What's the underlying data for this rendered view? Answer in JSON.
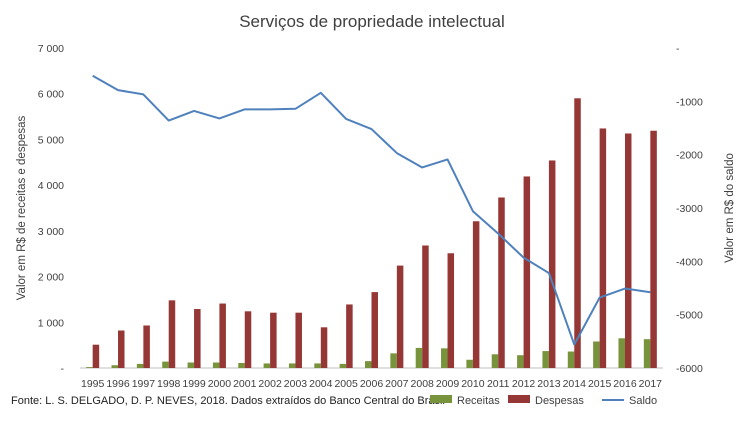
{
  "chart_data": {
    "type": "bar",
    "title": "Serviços de propriedade intelectual",
    "source": "Fonte: L. S. DELGADO, D. P. NEVES, 2018. Dados extraídos do Banco Central do Brasil",
    "ylabel": "Valor em R$ de receitas e despesas",
    "y2label": "Valor em R$ do saldo",
    "ylim": [
      0,
      7000
    ],
    "y2lim": [
      -6000,
      0
    ],
    "yticks": [
      "-",
      "1 000",
      "2 000",
      "3 000",
      "4 000",
      "5 000",
      "6 000",
      "7 000"
    ],
    "y2ticks": [
      "-6000",
      "-5000",
      "-4000",
      "-3000",
      "-2000",
      "-1000",
      "-"
    ],
    "grid": false,
    "legend": "bottom-right",
    "categories": [
      "1995",
      "1996",
      "1997",
      "1998",
      "1999",
      "2000",
      "2001",
      "2002",
      "2003",
      "2004",
      "2005",
      "2006",
      "2007",
      "2008",
      "2009",
      "2010",
      "2011",
      "2012",
      "2013",
      "2014",
      "2015",
      "2016",
      "2017"
    ],
    "series": [
      {
        "name": "Receitas",
        "type": "bar",
        "axis": "left",
        "color": "#77933c",
        "values": [
          20,
          60,
          90,
          140,
          120,
          120,
          110,
          100,
          100,
          100,
          90,
          150,
          320,
          440,
          430,
          180,
          300,
          280,
          370,
          360,
          580,
          650,
          630
        ]
      },
      {
        "name": "Despesas",
        "type": "bar",
        "axis": "left",
        "color": "#953735",
        "values": [
          510,
          820,
          930,
          1480,
          1290,
          1410,
          1240,
          1210,
          1210,
          890,
          1390,
          1660,
          2240,
          2680,
          2510,
          3210,
          3730,
          4190,
          4540,
          5900,
          5240,
          5130,
          5190
        ]
      },
      {
        "name": "Saldo",
        "type": "line",
        "axis": "right",
        "color": "#4f81bd",
        "values": [
          -520,
          -790,
          -870,
          -1360,
          -1180,
          -1320,
          -1150,
          -1150,
          -1140,
          -840,
          -1330,
          -1520,
          -1970,
          -2240,
          -2090,
          -3060,
          -3480,
          -3930,
          -4220,
          -5560,
          -4680,
          -4510,
          -4580
        ]
      }
    ]
  }
}
